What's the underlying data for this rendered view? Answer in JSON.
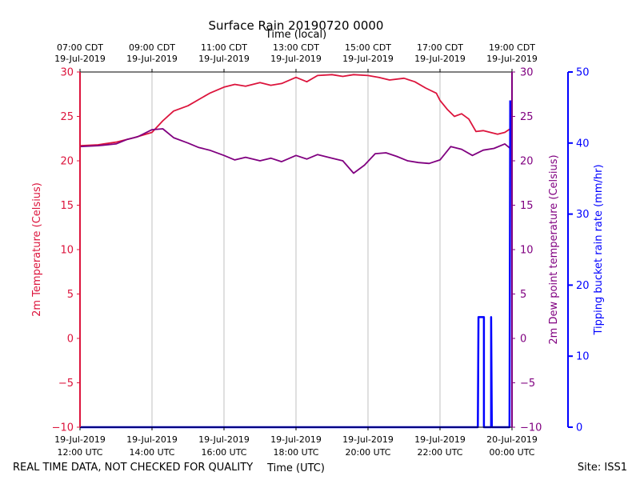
{
  "chart_data": {
    "type": "line",
    "title": "Surface Rain 20190720 0000",
    "footer_left": "REAL TIME DATA, NOT CHECKED FOR QUALITY",
    "footer_right": "Site: ISS1",
    "x_bottom": {
      "label": "Time (UTC)",
      "range_hours": [
        12,
        24
      ],
      "ticks": [
        {
          "h": 12,
          "date": "19-Jul-2019",
          "time": "12:00 UTC"
        },
        {
          "h": 14,
          "date": "19-Jul-2019",
          "time": "14:00 UTC"
        },
        {
          "h": 16,
          "date": "19-Jul-2019",
          "time": "16:00 UTC"
        },
        {
          "h": 18,
          "date": "19-Jul-2019",
          "time": "18:00 UTC"
        },
        {
          "h": 20,
          "date": "19-Jul-2019",
          "time": "20:00 UTC"
        },
        {
          "h": 22,
          "date": "19-Jul-2019",
          "time": "22:00 UTC"
        },
        {
          "h": 24,
          "date": "20-Jul-2019",
          "time": "00:00 UTC"
        }
      ]
    },
    "x_top": {
      "label": "Time (local)",
      "ticks": [
        {
          "h": 12,
          "time": "07:00 CDT",
          "date": "19-Jul-2019"
        },
        {
          "h": 14,
          "time": "09:00 CDT",
          "date": "19-Jul-2019"
        },
        {
          "h": 16,
          "time": "11:00 CDT",
          "date": "19-Jul-2019"
        },
        {
          "h": 18,
          "time": "13:00 CDT",
          "date": "19-Jul-2019"
        },
        {
          "h": 20,
          "time": "15:00 CDT",
          "date": "19-Jul-2019"
        },
        {
          "h": 22,
          "time": "17:00 CDT",
          "date": "19-Jul-2019"
        },
        {
          "h": 24,
          "time": "19:00 CDT",
          "date": "19-Jul-2019"
        }
      ]
    },
    "y_left": {
      "label": "2m Temperature (Celsius)",
      "color": "#dc143c",
      "ylim": [
        -10,
        30
      ],
      "ticks": [
        {
          "v": -10,
          "label": "−10"
        },
        {
          "v": -5,
          "label": "−5"
        },
        {
          "v": 0,
          "label": "0"
        },
        {
          "v": 5,
          "label": "5"
        },
        {
          "v": 10,
          "label": "10"
        },
        {
          "v": 15,
          "label": "15"
        },
        {
          "v": 20,
          "label": "20"
        },
        {
          "v": 25,
          "label": "25"
        },
        {
          "v": 30,
          "label": "30"
        }
      ]
    },
    "y_right1": {
      "label": "2m Dew point temperature (Celsius)",
      "color": "#800080",
      "ylim": [
        -10,
        30
      ],
      "ticks": [
        {
          "v": -10,
          "label": "−10"
        },
        {
          "v": -5,
          "label": "−5"
        },
        {
          "v": 0,
          "label": "0"
        },
        {
          "v": 5,
          "label": "5"
        },
        {
          "v": 10,
          "label": "10"
        },
        {
          "v": 15,
          "label": "15"
        },
        {
          "v": 20,
          "label": "20"
        },
        {
          "v": 25,
          "label": "25"
        },
        {
          "v": 30,
          "label": "30"
        }
      ]
    },
    "y_right2": {
      "label": "Tipping bucket rain rate (mm/hr)",
      "color": "#0000ff",
      "ylim": [
        0,
        50
      ],
      "ticks": [
        {
          "v": 0,
          "label": "0"
        },
        {
          "v": 10,
          "label": "10"
        },
        {
          "v": 20,
          "label": "20"
        },
        {
          "v": 30,
          "label": "30"
        },
        {
          "v": 40,
          "label": "40"
        },
        {
          "v": 50,
          "label": "50"
        }
      ]
    },
    "series": [
      {
        "name": "2m Temperature",
        "axis": "left",
        "color": "#dc143c",
        "x": [
          12.0,
          12.5,
          13.0,
          13.5,
          14.0,
          14.3,
          14.6,
          15.0,
          15.3,
          15.6,
          16.0,
          16.3,
          16.6,
          17.0,
          17.3,
          17.6,
          18.0,
          18.3,
          18.6,
          19.0,
          19.3,
          19.6,
          20.0,
          20.3,
          20.6,
          21.0,
          21.3,
          21.6,
          21.9,
          22.0,
          22.2,
          22.4,
          22.6,
          22.8,
          23.0,
          23.2,
          23.4,
          23.6,
          23.8,
          23.95
        ],
        "values": [
          21.7,
          21.8,
          22.1,
          22.6,
          23.2,
          24.5,
          25.6,
          26.2,
          26.9,
          27.6,
          28.3,
          28.6,
          28.4,
          28.8,
          28.5,
          28.7,
          29.4,
          28.9,
          29.6,
          29.7,
          29.5,
          29.7,
          29.6,
          29.4,
          29.1,
          29.3,
          28.9,
          28.2,
          27.6,
          26.8,
          25.8,
          25.0,
          25.3,
          24.7,
          23.3,
          23.4,
          23.2,
          23.0,
          23.2,
          23.6
        ]
      },
      {
        "name": "2m Dew point temperature",
        "axis": "right1",
        "color": "#800080",
        "x": [
          12.0,
          12.5,
          13.0,
          13.3,
          13.6,
          14.0,
          14.3,
          14.6,
          15.0,
          15.3,
          15.6,
          16.0,
          16.3,
          16.6,
          17.0,
          17.3,
          17.6,
          18.0,
          18.3,
          18.6,
          19.0,
          19.3,
          19.6,
          19.9,
          20.2,
          20.5,
          20.8,
          21.1,
          21.4,
          21.7,
          22.0,
          22.3,
          22.6,
          22.9,
          23.2,
          23.5,
          23.8,
          23.95
        ],
        "values": [
          21.6,
          21.7,
          21.9,
          22.4,
          22.7,
          23.5,
          23.6,
          22.6,
          22.0,
          21.5,
          21.2,
          20.6,
          20.1,
          20.4,
          20.0,
          20.3,
          19.9,
          20.6,
          20.2,
          20.7,
          20.3,
          20.0,
          18.6,
          19.5,
          20.8,
          20.9,
          20.5,
          20.0,
          19.8,
          19.7,
          20.1,
          21.6,
          21.3,
          20.6,
          21.2,
          21.4,
          21.9,
          21.4
        ]
      },
      {
        "name": "Tipping bucket rain rate",
        "axis": "right2",
        "color": "#0000ff",
        "x": [
          12.0,
          23.05,
          23.07,
          23.07,
          23.22,
          23.22,
          23.42,
          23.42,
          23.44,
          23.93,
          23.95
        ],
        "values": [
          0,
          0,
          15.5,
          15.5,
          15.5,
          0,
          0,
          15.5,
          0,
          0,
          46
        ]
      }
    ]
  }
}
